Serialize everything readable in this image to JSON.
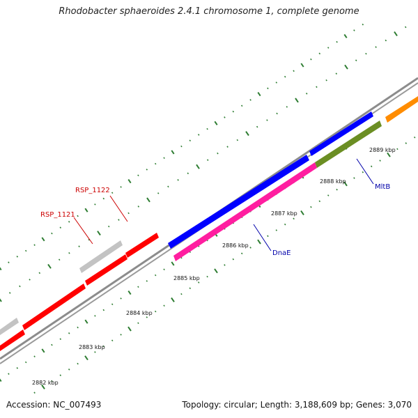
{
  "title": "Rhodobacter sphaeroides 2.4.1 chromosome 1, complete genome",
  "footer": {
    "accession": "Accession: NC_007493",
    "summary": "Topology: circular; Length: 3,188,609 bp; Genes: 3,070"
  },
  "colors": {
    "backbone": "#8c8c8c",
    "tick": "#2e7d32",
    "forward_cds": "#0000ff",
    "reverse_cds": "#ff0000",
    "rna_gene": "#ff1ea0",
    "misc_gene": "#c3c3c3",
    "olive_gene": "#6b8e23",
    "orange_gene": "#ff8c00",
    "label_red": "#cc0000",
    "label_blue": "#0000aa"
  },
  "scale": {
    "unit": "kbp",
    "labels": [
      "2882 kbp",
      "2883 kbp",
      "2884 kbp",
      "2885 kbp",
      "2886 kbp",
      "2887 kbp",
      "2888 kbp",
      "2889 kbp"
    ]
  },
  "gene_labels": [
    {
      "id": "rsp1122",
      "text": "RSP_1122",
      "color": "label_red"
    },
    {
      "id": "rsp1121",
      "text": "RSP_1121",
      "color": "label_red"
    },
    {
      "id": "mltb",
      "text": "MltB",
      "color": "label_blue"
    },
    {
      "id": "dnae",
      "text": "DnaE",
      "color": "label_blue"
    }
  ]
}
